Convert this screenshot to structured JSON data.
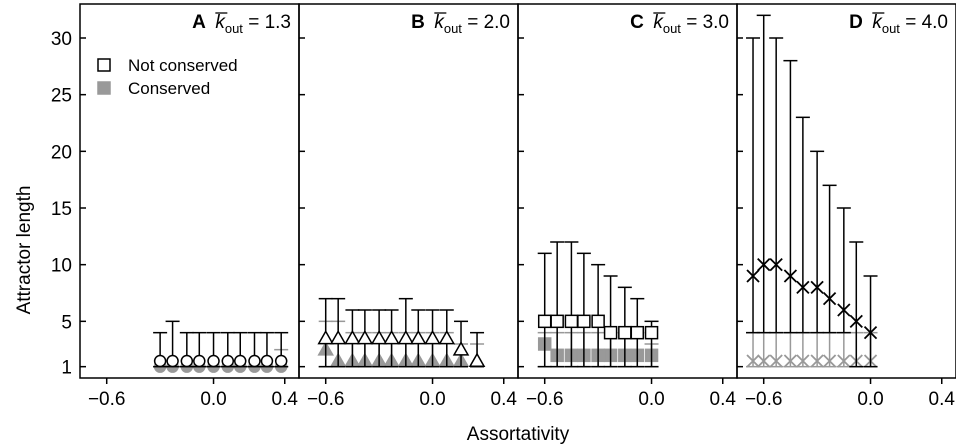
{
  "chart_data": {
    "type": "scatter",
    "xlabel": "Assortativity",
    "ylabel": "Attractor length",
    "ylim": [
      0,
      33
    ],
    "yticks": [
      1,
      5,
      10,
      15,
      20,
      25,
      30
    ],
    "xticks_labels": [
      "−0.6",
      "0.0",
      "0.4"
    ],
    "xticks": [
      -0.6,
      0.0,
      0.4
    ],
    "legend": {
      "position": "top-left of panel A",
      "entries": [
        {
          "label": "Not conserved",
          "style": "open-square",
          "color": "#000000"
        },
        {
          "label": "Conserved",
          "style": "filled-square",
          "color": "#999999"
        }
      ]
    },
    "panels": [
      {
        "id": "A",
        "letter": "A",
        "kout_value": "1.3",
        "xlim": [
          -0.75,
          0.48
        ],
        "not_conserved": {
          "marker": "circle",
          "points": [
            {
              "x": -0.3,
              "y": 1.5,
              "low": 1,
              "high": 4
            },
            {
              "x": -0.23,
              "y": 1.5,
              "low": 1,
              "high": 5
            },
            {
              "x": -0.15,
              "y": 1.5,
              "low": 1,
              "high": 4
            },
            {
              "x": -0.08,
              "y": 1.5,
              "low": 1,
              "high": 4
            },
            {
              "x": 0.0,
              "y": 1.5,
              "low": 1,
              "high": 4
            },
            {
              "x": 0.08,
              "y": 1.5,
              "low": 1,
              "high": 4
            },
            {
              "x": 0.15,
              "y": 1.5,
              "low": 1,
              "high": 4
            },
            {
              "x": 0.23,
              "y": 1.5,
              "low": 1,
              "high": 4
            },
            {
              "x": 0.3,
              "y": 1.5,
              "low": 1,
              "high": 4
            },
            {
              "x": 0.38,
              "y": 1.5,
              "low": 1,
              "high": 4
            }
          ]
        },
        "conserved": {
          "marker": "circle",
          "points": [
            {
              "x": -0.3,
              "y": 1,
              "low": 1,
              "high": 1
            },
            {
              "x": -0.23,
              "y": 1,
              "low": 1,
              "high": 1
            },
            {
              "x": -0.15,
              "y": 1,
              "low": 1,
              "high": 1
            },
            {
              "x": -0.08,
              "y": 1,
              "low": 1,
              "high": 1
            },
            {
              "x": 0.0,
              "y": 1,
              "low": 1,
              "high": 1
            },
            {
              "x": 0.08,
              "y": 1,
              "low": 1,
              "high": 1
            },
            {
              "x": 0.15,
              "y": 1,
              "low": 1,
              "high": 1
            },
            {
              "x": 0.23,
              "y": 1,
              "low": 1,
              "high": 1
            },
            {
              "x": 0.3,
              "y": 1,
              "low": 1,
              "high": 1
            },
            {
              "x": 0.38,
              "y": 1,
              "low": 1,
              "high": 2.5
            }
          ]
        }
      },
      {
        "id": "B",
        "letter": "B",
        "kout_value": "2.0",
        "xlim": [
          -0.75,
          0.48
        ],
        "not_conserved": {
          "marker": "triangle",
          "points": [
            {
              "x": -0.6,
              "y": 3.5,
              "low": 1,
              "high": 7
            },
            {
              "x": -0.53,
              "y": 3.5,
              "low": 1,
              "high": 7
            },
            {
              "x": -0.45,
              "y": 3.5,
              "low": 1,
              "high": 6
            },
            {
              "x": -0.38,
              "y": 3.5,
              "low": 1,
              "high": 6
            },
            {
              "x": -0.3,
              "y": 3.5,
              "low": 1,
              "high": 6
            },
            {
              "x": -0.23,
              "y": 3.5,
              "low": 1,
              "high": 6
            },
            {
              "x": -0.15,
              "y": 3.5,
              "low": 1,
              "high": 7
            },
            {
              "x": -0.08,
              "y": 3.5,
              "low": 1,
              "high": 6
            },
            {
              "x": 0.0,
              "y": 3.5,
              "low": 1,
              "high": 6
            },
            {
              "x": 0.08,
              "y": 3.5,
              "low": 1,
              "high": 6
            },
            {
              "x": 0.16,
              "y": 2.5,
              "low": 1,
              "high": 5
            },
            {
              "x": 0.25,
              "y": 1.5,
              "low": 1,
              "high": 4
            }
          ]
        },
        "conserved": {
          "marker": "triangle",
          "points": [
            {
              "x": -0.6,
              "y": 2.5,
              "low": 1,
              "high": 5
            },
            {
              "x": -0.53,
              "y": 1.5,
              "low": 1,
              "high": 5
            },
            {
              "x": -0.45,
              "y": 1.5,
              "low": 1,
              "high": 4
            },
            {
              "x": -0.38,
              "y": 1.5,
              "low": 1,
              "high": 4
            },
            {
              "x": -0.3,
              "y": 1.5,
              "low": 1,
              "high": 4
            },
            {
              "x": -0.23,
              "y": 1.5,
              "low": 1,
              "high": 4
            },
            {
              "x": -0.15,
              "y": 1.5,
              "low": 1,
              "high": 4
            },
            {
              "x": -0.08,
              "y": 1.5,
              "low": 1,
              "high": 4
            },
            {
              "x": 0.0,
              "y": 1.5,
              "low": 1,
              "high": 4
            },
            {
              "x": 0.08,
              "y": 1.5,
              "low": 1,
              "high": 4
            },
            {
              "x": 0.16,
              "y": 1.5,
              "low": 1,
              "high": 3
            },
            {
              "x": 0.25,
              "y": 1.5,
              "low": 1,
              "high": 3
            }
          ]
        }
      },
      {
        "id": "C",
        "letter": "C",
        "kout_value": "3.0",
        "xlim": [
          -0.75,
          0.48
        ],
        "not_conserved": {
          "marker": "square",
          "points": [
            {
              "x": -0.6,
              "y": 5,
              "low": 1,
              "high": 11
            },
            {
              "x": -0.53,
              "y": 5,
              "low": 1,
              "high": 12
            },
            {
              "x": -0.45,
              "y": 5,
              "low": 1,
              "high": 12
            },
            {
              "x": -0.38,
              "y": 5,
              "low": 1,
              "high": 11
            },
            {
              "x": -0.3,
              "y": 5,
              "low": 1,
              "high": 10
            },
            {
              "x": -0.23,
              "y": 4,
              "low": 1,
              "high": 9
            },
            {
              "x": -0.15,
              "y": 4,
              "low": 1,
              "high": 8
            },
            {
              "x": -0.08,
              "y": 4,
              "low": 1,
              "high": 7
            },
            {
              "x": 0.0,
              "y": 4,
              "low": 1,
              "high": 5
            }
          ]
        },
        "conserved": {
          "marker": "square",
          "points": [
            {
              "x": -0.6,
              "y": 3,
              "low": 1,
              "high": 4
            },
            {
              "x": -0.53,
              "y": 2,
              "low": 1,
              "high": 4
            },
            {
              "x": -0.45,
              "y": 2,
              "low": 1,
              "high": 4
            },
            {
              "x": -0.38,
              "y": 2,
              "low": 1,
              "high": 4
            },
            {
              "x": -0.3,
              "y": 2,
              "low": 1,
              "high": 4
            },
            {
              "x": -0.23,
              "y": 2,
              "low": 1,
              "high": 4
            },
            {
              "x": -0.15,
              "y": 2,
              "low": 1,
              "high": 4
            },
            {
              "x": -0.08,
              "y": 2,
              "low": 1,
              "high": 4
            },
            {
              "x": 0.0,
              "y": 2,
              "low": 1,
              "high": 3
            }
          ]
        }
      },
      {
        "id": "D",
        "letter": "D",
        "kout_value": "4.0",
        "xlim": [
          -0.75,
          0.48
        ],
        "not_conserved": {
          "marker": "x",
          "points": [
            {
              "x": -0.66,
              "y": 9,
              "low": 4,
              "high": 30
            },
            {
              "x": -0.6,
              "y": 10,
              "low": 4,
              "high": 32
            },
            {
              "x": -0.53,
              "y": 10,
              "low": 4,
              "high": 30
            },
            {
              "x": -0.45,
              "y": 9,
              "low": 4,
              "high": 28
            },
            {
              "x": -0.38,
              "y": 8,
              "low": 4,
              "high": 23
            },
            {
              "x": -0.3,
              "y": 8,
              "low": 4,
              "high": 20
            },
            {
              "x": -0.23,
              "y": 7,
              "low": 4,
              "high": 17
            },
            {
              "x": -0.15,
              "y": 6,
              "low": 4,
              "high": 15
            },
            {
              "x": -0.08,
              "y": 5,
              "low": 1,
              "high": 12
            },
            {
              "x": 0.0,
              "y": 4,
              "low": 1,
              "high": 9
            }
          ]
        },
        "conserved": {
          "marker": "x",
          "points": [
            {
              "x": -0.66,
              "y": 1.5,
              "low": 1,
              "high": 4
            },
            {
              "x": -0.6,
              "y": 1.5,
              "low": 1,
              "high": 4
            },
            {
              "x": -0.53,
              "y": 1.5,
              "low": 1,
              "high": 4
            },
            {
              "x": -0.45,
              "y": 1.5,
              "low": 1,
              "high": 4
            },
            {
              "x": -0.38,
              "y": 1.5,
              "low": 1,
              "high": 4
            },
            {
              "x": -0.3,
              "y": 1.5,
              "low": 1,
              "high": 4
            },
            {
              "x": -0.23,
              "y": 1.5,
              "low": 1,
              "high": 4
            },
            {
              "x": -0.15,
              "y": 1.5,
              "low": 1,
              "high": 4
            },
            {
              "x": -0.08,
              "y": 1.5,
              "low": 1,
              "high": 4
            },
            {
              "x": 0.0,
              "y": 1.5,
              "low": 1,
              "high": 4
            }
          ]
        }
      }
    ],
    "colors": {
      "not_conserved": "#000000",
      "conserved": "#999999",
      "axis": "#000000"
    }
  }
}
